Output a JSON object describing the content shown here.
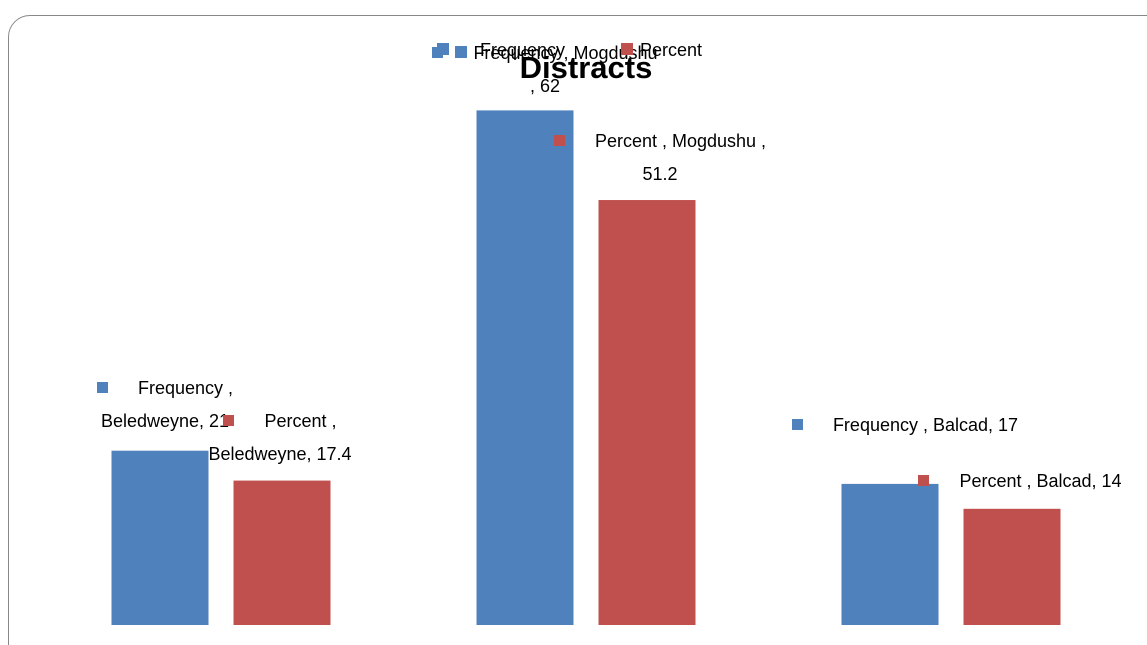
{
  "chart_data": {
    "type": "bar",
    "title": "Distracts",
    "series": [
      {
        "name": "Frequency",
        "color": "#4f81bd",
        "values": [
          21,
          62,
          17
        ],
        "value_labels": [
          "Frequency , Beledweyne, 21",
          "Frequency , Mogdushu , 62",
          "Frequency , Balcad, 17"
        ]
      },
      {
        "name": "Percent",
        "color": "#c0504d",
        "values": [
          17.4,
          51.2,
          14
        ],
        "value_labels": [
          "Percent , Beledweyne, 17.4",
          "Percent , Mogdushu , 51.2",
          "Percent , Balcad, 14"
        ]
      }
    ],
    "ylim": [
      0,
      70
    ],
    "legend": "top"
  }
}
